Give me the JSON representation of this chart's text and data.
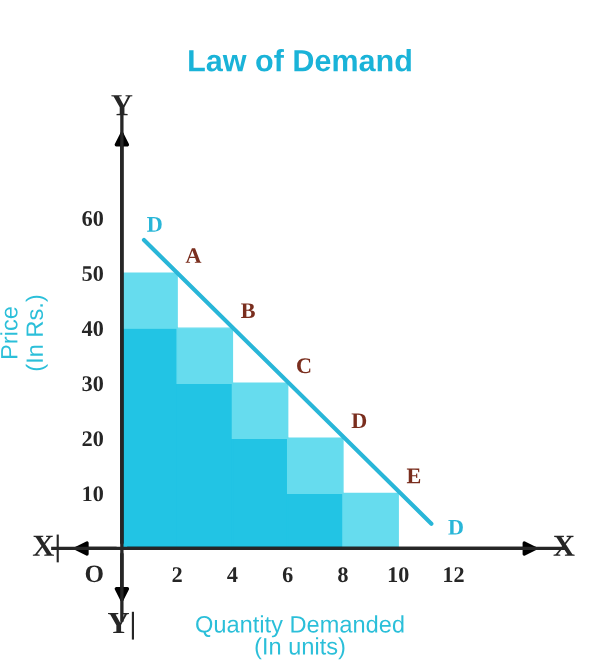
{
  "chart_data": {
    "type": "bar",
    "stacked": true,
    "title": "Law of Demand",
    "xlabel": "Quantity Demanded\n(In units)",
    "ylabel": "Price\n(In Rs.)",
    "x": [
      1,
      3,
      5,
      7,
      9
    ],
    "series": [
      {
        "color": "#22c4e4",
        "values": [
          40,
          30,
          20,
          10,
          0
        ]
      },
      {
        "color": "#66dcee",
        "values": [
          10,
          10,
          10,
          10,
          10
        ]
      },
      {
        "type": "line",
        "color": "#29b6d8",
        "x": [
          0.8,
          11.2
        ],
        "values": [
          56,
          4.5
        ]
      }
    ],
    "xlim": [
      -2.5,
      16
    ],
    "ylim": [
      -13,
      80
    ],
    "xticks": [
      2,
      4,
      6,
      8,
      10,
      12
    ],
    "yticks": [
      10,
      20,
      30,
      40,
      50,
      60
    ],
    "grid": false,
    "annotations": [
      {
        "text": "A",
        "x": 2,
        "y": 50
      },
      {
        "text": "B",
        "x": 4,
        "y": 40
      },
      {
        "text": "C",
        "x": 6,
        "y": 30
      },
      {
        "text": "D",
        "x": 8,
        "y": 20
      },
      {
        "text": "E",
        "x": 10,
        "y": 10
      },
      {
        "text": "D",
        "x": 0.8,
        "y": 56
      },
      {
        "text": "D",
        "x": 11.2,
        "y": 4.5
      },
      {
        "text": "O",
        "x": 0,
        "y": 0
      },
      "X",
      "X|",
      "Y",
      "Y|"
    ]
  }
}
